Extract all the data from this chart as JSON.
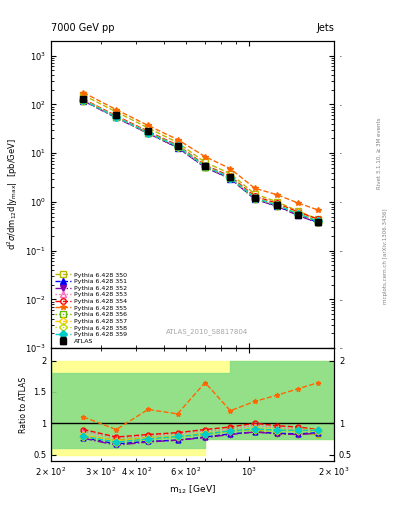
{
  "title_left": "7000 GeV pp",
  "title_right": "Jets",
  "ylabel_main": "d$^2\\sigma$/dm$_{12}$d|y$_{max}$|  [pb/GeV]",
  "ylabel_ratio": "Ratio to ATLAS",
  "xlabel": "m$_{12}$ [GeV]",
  "watermark": "ATLAS_2010_S8817804",
  "right_label": "Rivet 3.1.10, ≥ 3M events",
  "right_label2": "mcplots.cern.ch [arXiv:1306.3436]",
  "atlas_x": [
    260,
    340,
    440,
    560,
    700,
    860,
    1050,
    1260,
    1490,
    1760
  ],
  "atlas_y": [
    130,
    60,
    28,
    14,
    5.5,
    3.2,
    1.2,
    0.85,
    0.55,
    0.38
  ],
  "atlas_yerr": [
    15,
    7,
    3,
    1.5,
    0.6,
    0.35,
    0.13,
    0.09,
    0.06,
    0.04
  ],
  "series": [
    {
      "label": "Pythia 6.428 350",
      "color": "#b8b800",
      "marker": "s",
      "marker_fill": "none",
      "linestyle": "--",
      "x": [
        260,
        340,
        440,
        560,
        700,
        860,
        1050,
        1260,
        1490,
        1760
      ],
      "y": [
        155,
        70,
        33,
        16.5,
        6.5,
        3.8,
        1.45,
        1.0,
        0.65,
        0.44
      ],
      "ratio": [
        0.8,
        0.73,
        0.77,
        0.79,
        0.82,
        0.88,
        0.9,
        0.83,
        0.83,
        0.82
      ]
    },
    {
      "label": "Pythia 6.428 351",
      "color": "#0000ff",
      "marker": "^",
      "marker_fill": "full",
      "linestyle": "--",
      "x": [
        260,
        340,
        440,
        560,
        700,
        860,
        1050,
        1260,
        1490,
        1760
      ],
      "y": [
        120,
        54,
        26,
        13,
        5.2,
        3.0,
        1.15,
        0.82,
        0.54,
        0.38
      ],
      "ratio": [
        0.77,
        0.67,
        0.71,
        0.73,
        0.78,
        0.83,
        0.86,
        0.84,
        0.83,
        0.85
      ]
    },
    {
      "label": "Pythia 6.428 352",
      "color": "#8800aa",
      "marker": "v",
      "marker_fill": "full",
      "linestyle": "-.",
      "x": [
        260,
        340,
        440,
        560,
        700,
        860,
        1050,
        1260,
        1490,
        1760
      ],
      "y": [
        118,
        53,
        25.5,
        13,
        5.1,
        3.0,
        1.14,
        0.81,
        0.53,
        0.37
      ],
      "ratio": [
        0.76,
        0.65,
        0.7,
        0.73,
        0.77,
        0.82,
        0.86,
        0.83,
        0.82,
        0.84
      ]
    },
    {
      "label": "Pythia 6.428 353",
      "color": "#ff66bb",
      "marker": "^",
      "marker_fill": "none",
      "linestyle": ":",
      "x": [
        260,
        340,
        440,
        560,
        700,
        860,
        1050,
        1260,
        1490,
        1760
      ],
      "y": [
        125,
        57,
        27.5,
        14,
        5.5,
        3.2,
        1.25,
        0.9,
        0.6,
        0.42
      ],
      "ratio": [
        0.87,
        0.76,
        0.8,
        0.83,
        0.88,
        0.9,
        0.97,
        0.93,
        0.91,
        0.88
      ]
    },
    {
      "label": "Pythia 6.428 354",
      "color": "#ff0000",
      "marker": "o",
      "marker_fill": "none",
      "linestyle": "--",
      "x": [
        260,
        340,
        440,
        560,
        700,
        860,
        1050,
        1260,
        1490,
        1760
      ],
      "y": [
        128,
        58,
        28,
        14.5,
        5.7,
        3.35,
        1.3,
        0.93,
        0.62,
        0.44
      ],
      "ratio": [
        0.9,
        0.78,
        0.82,
        0.85,
        0.9,
        0.94,
        1.0,
        0.96,
        0.94,
        0.9
      ]
    },
    {
      "label": "Pythia 6.428 355",
      "color": "#ff6600",
      "marker": "*",
      "marker_fill": "full",
      "linestyle": "--",
      "x": [
        260,
        340,
        440,
        560,
        700,
        860,
        1050,
        1260,
        1490,
        1760
      ],
      "y": [
        175,
        78,
        37,
        19,
        8.5,
        4.8,
        1.9,
        1.4,
        0.95,
        0.68
      ],
      "ratio": [
        1.1,
        0.9,
        1.22,
        1.15,
        1.65,
        1.2,
        1.35,
        1.45,
        1.55,
        1.65
      ]
    },
    {
      "label": "Pythia 6.428 356",
      "color": "#66bb00",
      "marker": "s",
      "marker_fill": "none",
      "linestyle": ":",
      "x": [
        260,
        340,
        440,
        560,
        700,
        860,
        1050,
        1260,
        1490,
        1760
      ],
      "y": [
        122,
        55,
        26,
        13.5,
        5.3,
        3.1,
        1.18,
        0.85,
        0.57,
        0.4
      ],
      "ratio": [
        0.79,
        0.7,
        0.74,
        0.78,
        0.82,
        0.87,
        0.9,
        0.88,
        0.89,
        0.88
      ]
    },
    {
      "label": "Pythia 6.428 357",
      "color": "#ffcc00",
      "marker": "D",
      "marker_fill": "none",
      "linestyle": "--",
      "x": [
        260,
        340,
        440,
        560,
        700,
        860,
        1050,
        1260,
        1490,
        1760
      ],
      "y": [
        125,
        56,
        27,
        14,
        5.5,
        3.2,
        1.23,
        0.88,
        0.59,
        0.41
      ],
      "ratio": [
        0.81,
        0.71,
        0.76,
        0.8,
        0.84,
        0.88,
        0.92,
        0.9,
        0.9,
        0.9
      ]
    },
    {
      "label": "Pythia 6.428 358",
      "color": "#bbdd00",
      "marker": "D",
      "marker_fill": "none",
      "linestyle": ":",
      "x": [
        260,
        340,
        440,
        560,
        700,
        860,
        1050,
        1260,
        1490,
        1760
      ],
      "y": [
        120,
        54,
        26,
        13.5,
        5.3,
        3.1,
        1.17,
        0.84,
        0.56,
        0.39
      ],
      "ratio": [
        0.78,
        0.69,
        0.74,
        0.78,
        0.83,
        0.87,
        0.9,
        0.87,
        0.87,
        0.87
      ]
    },
    {
      "label": "Pythia 6.428 359",
      "color": "#00cccc",
      "marker": "D",
      "marker_fill": "full",
      "linestyle": "--",
      "x": [
        260,
        340,
        440,
        560,
        700,
        860,
        1050,
        1260,
        1490,
        1760
      ],
      "y": [
        122,
        55,
        26.5,
        13.8,
        5.4,
        3.15,
        1.2,
        0.86,
        0.57,
        0.4
      ],
      "ratio": [
        0.79,
        0.7,
        0.75,
        0.79,
        0.83,
        0.88,
        0.91,
        0.89,
        0.89,
        0.89
      ]
    }
  ],
  "yellow_band_x": [
    200,
    260,
    340,
    440,
    560,
    700,
    860,
    1050,
    1260,
    1490,
    1760,
    2000
  ],
  "yellow_band_lo": [
    0.5,
    0.5,
    0.5,
    0.5,
    0.5,
    0.5,
    0.75,
    0.75,
    0.75,
    0.75,
    0.75,
    0.75
  ],
  "yellow_band_hi": [
    2.0,
    2.0,
    2.0,
    2.0,
    2.0,
    2.0,
    2.0,
    2.0,
    2.0,
    2.0,
    2.0,
    2.0
  ],
  "green_band_x": [
    200,
    260,
    340,
    440,
    560,
    700,
    860,
    1050,
    1260,
    1490,
    1760,
    2000
  ],
  "green_band_lo": [
    0.5,
    0.6,
    0.6,
    0.6,
    0.6,
    0.6,
    0.75,
    0.75,
    0.75,
    0.75,
    0.75,
    0.75
  ],
  "green_band_hi": [
    2.0,
    1.8,
    1.8,
    1.8,
    1.8,
    1.8,
    1.8,
    2.0,
    2.0,
    2.0,
    2.0,
    2.0
  ],
  "xlim": [
    200,
    2000
  ],
  "ylim_main": [
    0.001,
    2000
  ],
  "ylim_ratio": [
    0.4,
    2.2
  ]
}
